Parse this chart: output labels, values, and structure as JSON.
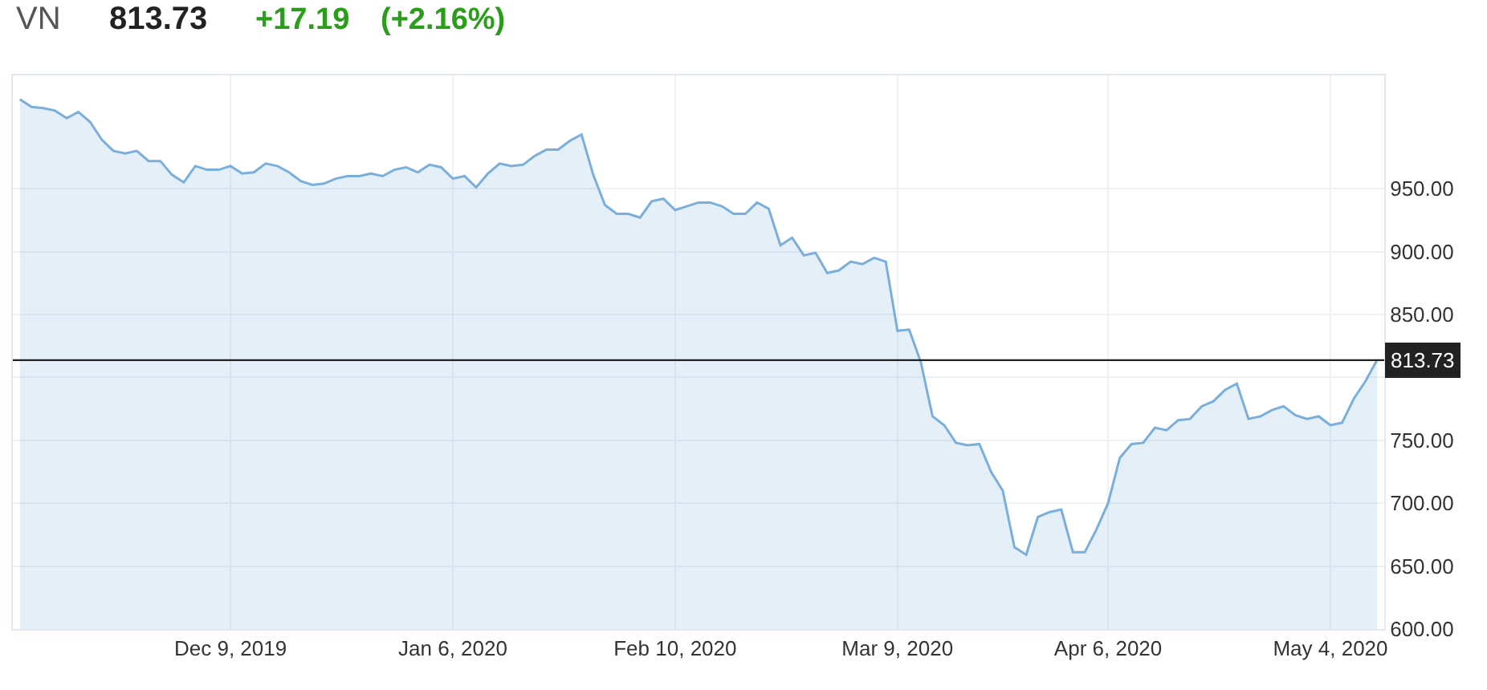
{
  "chart_data": {
    "type": "area",
    "title": "VN",
    "annotations": [
      "813.73",
      "+17.19",
      "(+2.16%)"
    ],
    "categories": [
      null,
      null,
      null,
      null,
      null,
      null,
      null,
      null,
      null,
      null,
      null,
      null,
      null,
      null,
      null,
      null,
      null,
      null,
      "Dec 9, 2019",
      null,
      null,
      null,
      null,
      null,
      null,
      null,
      null,
      null,
      null,
      null,
      null,
      null,
      null,
      null,
      null,
      null,
      null,
      "Jan 6, 2020",
      null,
      null,
      null,
      null,
      null,
      null,
      null,
      null,
      null,
      null,
      null,
      null,
      null,
      null,
      null,
      null,
      null,
      null,
      "Feb 10, 2020",
      null,
      null,
      null,
      null,
      null,
      null,
      null,
      null,
      null,
      null,
      null,
      null,
      null,
      null,
      null,
      null,
      null,
      null,
      "Mar 9, 2020",
      null,
      null,
      null,
      null,
      null,
      null,
      null,
      null,
      null,
      null,
      null,
      null,
      null,
      null,
      null,
      null,
      null,
      "Apr 6, 2020",
      null,
      null,
      null,
      null,
      null,
      null,
      null,
      null,
      null,
      null,
      null,
      null,
      null,
      null,
      null,
      null,
      null,
      null,
      "May 4, 2020",
      null,
      null,
      null,
      null
    ],
    "values": [
      1021,
      1015,
      1014,
      1012,
      1006,
      1011,
      1003,
      989,
      980,
      978,
      980,
      972,
      972,
      961,
      955,
      968,
      965,
      965,
      968,
      962,
      963,
      970,
      968,
      963,
      956,
      953,
      954,
      958,
      960,
      960,
      962,
      960,
      965,
      967,
      963,
      969,
      967,
      958,
      960,
      951,
      962,
      970,
      968,
      969,
      976,
      981,
      981,
      988,
      993,
      961,
      937,
      930,
      930,
      927,
      940,
      942,
      933,
      936,
      939,
      939,
      936,
      930,
      930,
      939,
      934,
      905,
      911,
      897,
      899,
      883,
      885,
      892,
      890,
      895,
      892,
      837,
      838,
      812,
      769,
      762,
      748,
      746,
      747,
      725,
      710,
      665,
      659,
      689,
      693,
      695,
      661,
      661,
      679,
      700,
      736,
      747,
      748,
      760,
      758,
      766,
      767,
      777,
      781,
      790,
      795,
      767,
      769,
      774,
      777,
      770,
      767,
      769,
      762,
      764,
      783,
      797,
      814
    ],
    "color": "#7aaedb",
    "ylim": [
      600,
      1040
    ],
    "yticks": [
      {
        "value": 600,
        "label": "600.00"
      },
      {
        "value": 650,
        "label": "650.00"
      },
      {
        "value": 700,
        "label": "700.00"
      },
      {
        "value": 750,
        "label": "750.00"
      },
      {
        "value": 800,
        "label": null
      },
      {
        "value": 850,
        "label": "850.00"
      },
      {
        "value": 900,
        "label": "900.00"
      },
      {
        "value": 950,
        "label": "950.00"
      }
    ],
    "ref_lines": [
      {
        "axis": "y",
        "value": 813.73,
        "label": "813.73",
        "color": "#222222"
      }
    ],
    "grid": true
  }
}
